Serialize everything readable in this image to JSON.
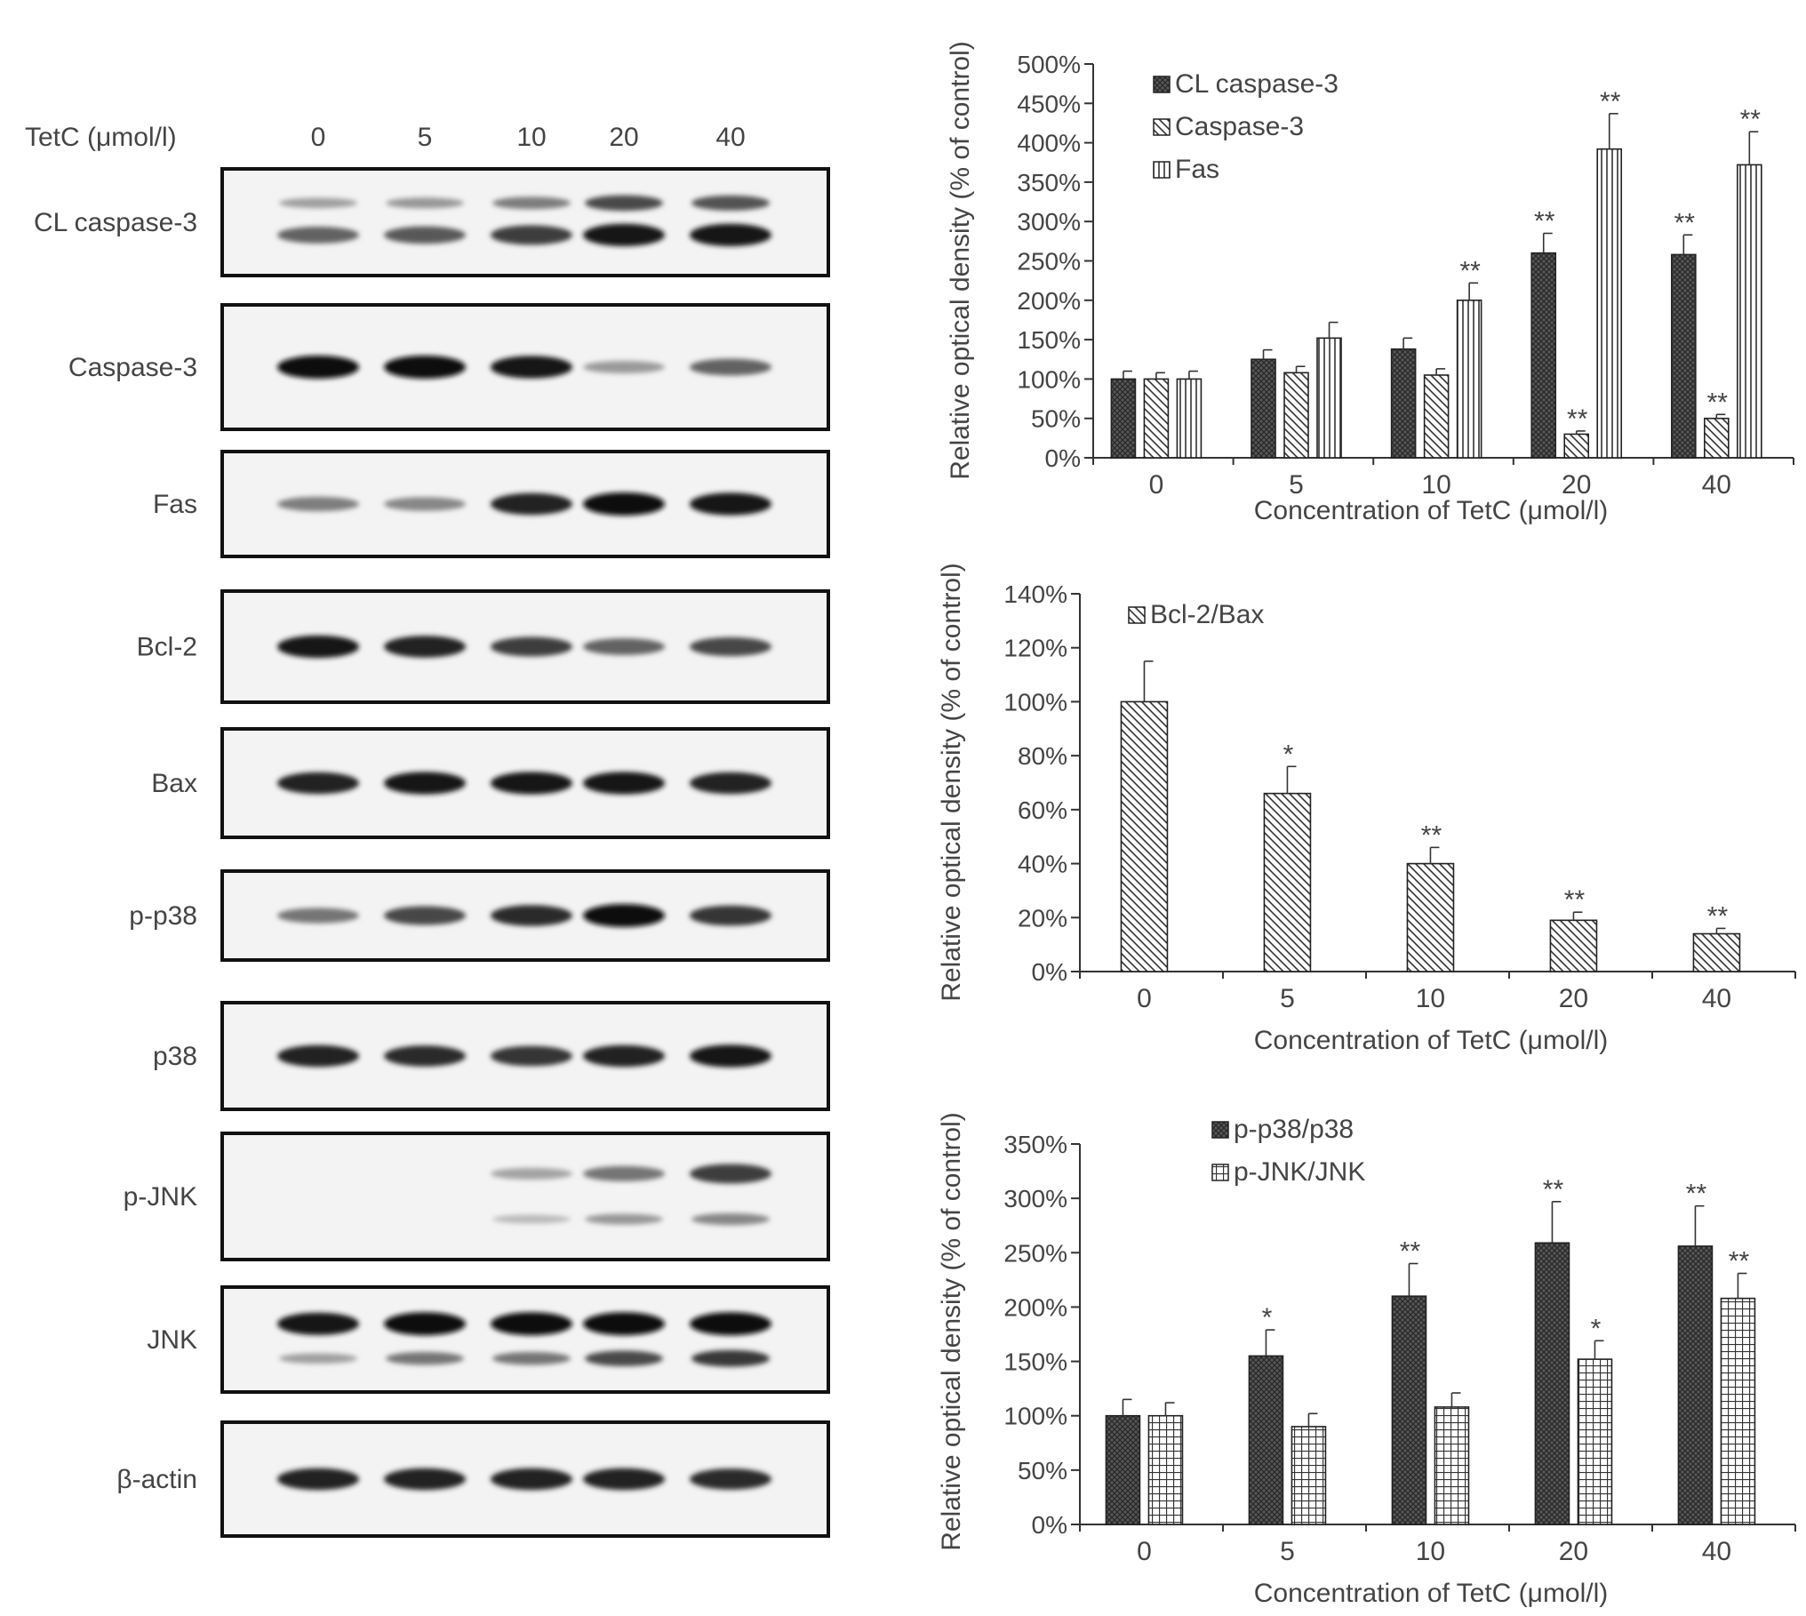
{
  "blot": {
    "header_label": "TetC (μmol/l)",
    "lanes": [
      "0",
      "5",
      "10",
      "20",
      "40"
    ],
    "rows": [
      {
        "label": "CL caspase-3",
        "band_intensity": [
          0.55,
          0.6,
          0.75,
          0.95,
          0.95
        ],
        "second_band": [
          0.3,
          0.35,
          0.5,
          0.8,
          0.75
        ]
      },
      {
        "label": "Caspase-3",
        "band_intensity": [
          1.0,
          1.0,
          0.95,
          0.25,
          0.55
        ]
      },
      {
        "label": "Fas",
        "band_intensity": [
          0.4,
          0.35,
          0.9,
          1.0,
          0.95
        ]
      },
      {
        "label": "Bcl-2",
        "band_intensity": [
          0.95,
          0.9,
          0.75,
          0.55,
          0.7
        ]
      },
      {
        "label": "Bax",
        "band_intensity": [
          0.9,
          0.95,
          0.95,
          0.95,
          0.9
        ]
      },
      {
        "label": "p-p38",
        "band_intensity": [
          0.45,
          0.7,
          0.85,
          1.0,
          0.8
        ]
      },
      {
        "label": "p38",
        "band_intensity": [
          0.9,
          0.85,
          0.8,
          0.9,
          0.95
        ]
      },
      {
        "label": "p-JNK",
        "band_intensity": [
          0.0,
          0.0,
          0.2,
          0.45,
          0.75
        ],
        "second_band": [
          0.0,
          0.0,
          0.15,
          0.35,
          0.45
        ]
      },
      {
        "label": "JNK",
        "band_intensity": [
          0.95,
          1.0,
          1.0,
          1.0,
          1.0
        ],
        "second_band": [
          0.3,
          0.55,
          0.55,
          0.8,
          0.9
        ]
      },
      {
        "label": "β-actin",
        "band_intensity": [
          0.9,
          0.9,
          0.9,
          0.9,
          0.85
        ]
      }
    ]
  },
  "chart_data": [
    {
      "type": "bar",
      "categories": [
        "0",
        "5",
        "10",
        "20",
        "40"
      ],
      "xlabel": "Concentration of TetC (μmol/l)",
      "ylabel": "Relative optical density (%  of control)",
      "ylim": [
        0,
        500
      ],
      "yticks": [
        "0%",
        "50%",
        "100%",
        "150%",
        "200%",
        "250%",
        "300%",
        "350%",
        "400%",
        "450%",
        "500%"
      ],
      "legend_position": "top-left",
      "series": [
        {
          "name": "CL caspase-3",
          "pattern": "crosshatch-dark",
          "values": [
            100,
            125,
            138,
            260,
            258
          ],
          "errors": [
            10,
            12,
            14,
            25,
            25
          ],
          "significance": [
            "",
            "",
            "",
            "**",
            "**"
          ]
        },
        {
          "name": "Caspase-3",
          "pattern": "diagonal",
          "values": [
            100,
            108,
            105,
            30,
            50
          ],
          "errors": [
            8,
            8,
            8,
            4,
            5
          ],
          "significance": [
            "",
            "",
            "",
            "**",
            "**"
          ]
        },
        {
          "name": "Fas",
          "pattern": "vertical",
          "values": [
            100,
            152,
            200,
            392,
            372
          ],
          "errors": [
            10,
            20,
            22,
            45,
            42
          ],
          "significance": [
            "",
            "",
            "**",
            "**",
            "**"
          ]
        }
      ]
    },
    {
      "type": "bar",
      "categories": [
        "0",
        "5",
        "10",
        "20",
        "40"
      ],
      "xlabel": "Concentration of TetC (μmol/l)",
      "ylabel": "Relative optical density (%  of control)",
      "ylim": [
        0,
        140
      ],
      "yticks": [
        "0%",
        "20%",
        "40%",
        "60%",
        "80%",
        "100%",
        "120%",
        "140%"
      ],
      "legend_position": "top-left",
      "series": [
        {
          "name": "Bcl-2/Bax",
          "pattern": "diagonal",
          "values": [
            100,
            66,
            40,
            19,
            14
          ],
          "errors": [
            15,
            10,
            6,
            3,
            2
          ],
          "significance": [
            "",
            "*",
            "**",
            "**",
            "**"
          ]
        }
      ]
    },
    {
      "type": "bar",
      "categories": [
        "0",
        "5",
        "10",
        "20",
        "40"
      ],
      "xlabel": "Concentration of TetC (μmol/l)",
      "ylabel": "Relative optical density (%  of control)",
      "ylim": [
        0,
        350
      ],
      "yticks": [
        "0%",
        "50%",
        "100%",
        "150%",
        "200%",
        "250%",
        "300%",
        "350%"
      ],
      "legend_position": "top-center",
      "series": [
        {
          "name": "p-p38/p38",
          "pattern": "crosshatch-dark",
          "values": [
            100,
            155,
            210,
            259,
            256
          ],
          "errors": [
            15,
            24,
            30,
            38,
            37
          ],
          "significance": [
            "",
            "*",
            "**",
            "**",
            "**"
          ]
        },
        {
          "name": "p-JNK/JNK",
          "pattern": "grid",
          "values": [
            100,
            90,
            108,
            152,
            208
          ],
          "errors": [
            12,
            12,
            13,
            17,
            23
          ],
          "significance": [
            "",
            "",
            "",
            "*",
            "**"
          ]
        }
      ]
    }
  ]
}
